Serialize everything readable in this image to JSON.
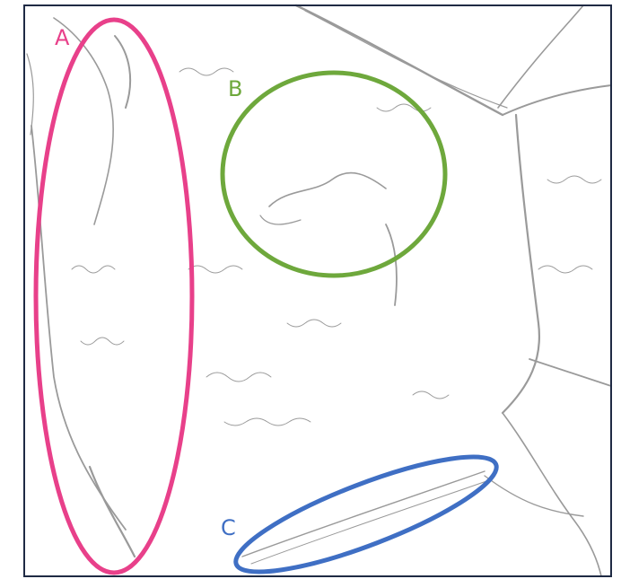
{
  "image": {
    "texture_color": "#9a9a9a",
    "frame_color": "#1f2a44",
    "background": "#ffffff"
  },
  "regions": [
    {
      "id": "A",
      "label": "A",
      "color": "#e8408a"
    },
    {
      "id": "B",
      "label": "B",
      "color": "#6ea83c"
    },
    {
      "id": "C",
      "label": "C",
      "color": "#3f6fc4"
    }
  ]
}
